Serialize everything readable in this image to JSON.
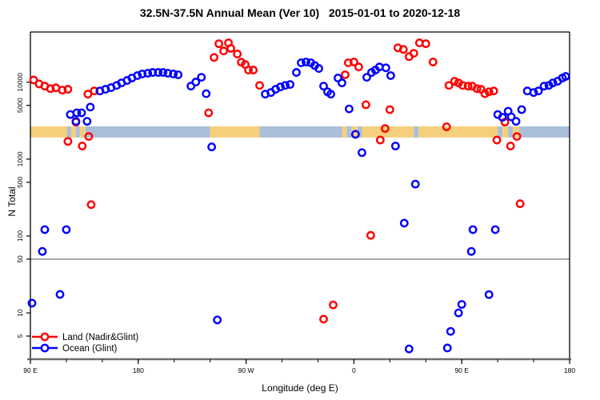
{
  "figure": {
    "title": "32.5N-37.5N Annual Mean (Ver 10)   2015-01-01 to 2020-12-18",
    "background": "#FFFFFF"
  },
  "chart_data": {
    "type": "scatter",
    "title": "32.5N-37.5N Annual Mean (Ver 10)   2015-01-01 to 2020-12-18",
    "xlabel": "Longitude (deg E)",
    "ylabel": "N Total",
    "x_axis": {
      "min": 90,
      "max": 540,
      "note": "longitude unwrapped eastward from 90E (axis wraps through 180, 90W, 0, 90E, 180)",
      "major_ticks": [
        {
          "pos": 90,
          "label": "90 E"
        },
        {
          "pos": 180,
          "label": "180"
        },
        {
          "pos": 270,
          "label": "90 W"
        },
        {
          "pos": 360,
          "label": "0"
        },
        {
          "pos": 450,
          "label": "90 E"
        },
        {
          "pos": 540,
          "label": "180"
        }
      ],
      "minor_tick_step": 30
    },
    "y_axis": {
      "scale": "log",
      "min": 2.5,
      "max": 45000,
      "tick_values": [
        5,
        10,
        50,
        100,
        500,
        1000,
        5000,
        10000
      ]
    },
    "reference_line": {
      "value": 50,
      "color": "#808080"
    },
    "surface_band": {
      "n_top": 2670,
      "n_bottom": 1910,
      "land_color": "#F6CF7D",
      "ocean_color": "#A9BED9",
      "segments": [
        {
          "from": 90,
          "to": 120.7,
          "type": "land"
        },
        {
          "from": 120.7,
          "to": 124,
          "type": "ocean"
        },
        {
          "from": 124,
          "to": 128,
          "type": "land"
        },
        {
          "from": 128,
          "to": 131.3,
          "type": "ocean"
        },
        {
          "from": 131.3,
          "to": 136,
          "type": "land"
        },
        {
          "from": 136,
          "to": 240,
          "type": "ocean"
        },
        {
          "from": 240,
          "to": 281.3,
          "type": "land"
        },
        {
          "from": 281.3,
          "to": 350,
          "type": "ocean"
        },
        {
          "from": 350,
          "to": 354,
          "type": "land"
        },
        {
          "from": 354,
          "to": 358,
          "type": "ocean"
        },
        {
          "from": 358,
          "to": 363.3,
          "type": "land"
        },
        {
          "from": 363.3,
          "to": 366.7,
          "type": "ocean"
        },
        {
          "from": 366.7,
          "to": 410,
          "type": "land"
        },
        {
          "from": 410,
          "to": 414,
          "type": "ocean"
        },
        {
          "from": 414,
          "to": 480,
          "type": "land"
        },
        {
          "from": 480,
          "to": 484,
          "type": "ocean"
        },
        {
          "from": 484,
          "to": 488.7,
          "type": "land"
        },
        {
          "from": 488.7,
          "to": 492.7,
          "type": "ocean"
        },
        {
          "from": 492.7,
          "to": 498,
          "type": "land"
        },
        {
          "from": 498,
          "to": 540,
          "type": "ocean"
        }
      ]
    },
    "series": [
      {
        "name": "Land (Nadir&Glint)",
        "color": "#FF0000",
        "marker": "open-circle",
        "points": [
          [
            92.7,
            10700
          ],
          [
            97.3,
            9500
          ],
          [
            102,
            8900
          ],
          [
            106.7,
            8250
          ],
          [
            111.3,
            8450
          ],
          [
            116.7,
            7900
          ],
          [
            121.3,
            8100
          ],
          [
            138,
            7000
          ],
          [
            143.3,
            7700
          ],
          [
            128,
            3030
          ],
          [
            121.3,
            1700
          ],
          [
            138.7,
            1970
          ],
          [
            133.3,
            1480
          ],
          [
            140.7,
            256
          ],
          [
            238.7,
            4000
          ],
          [
            243.3,
            21000
          ],
          [
            247.3,
            31700
          ],
          [
            251.3,
            25500
          ],
          [
            255.3,
            32500
          ],
          [
            257.3,
            27500
          ],
          [
            262.7,
            23300
          ],
          [
            266,
            18200
          ],
          [
            269.3,
            17000
          ],
          [
            272,
            14400
          ],
          [
            276,
            14400
          ],
          [
            281.3,
            9100
          ],
          [
            334.7,
            8.3
          ],
          [
            342.7,
            12.7
          ],
          [
            352.7,
            12500
          ],
          [
            355.3,
            17900
          ],
          [
            360,
            18300
          ],
          [
            364,
            15800
          ],
          [
            370,
            5100
          ],
          [
            374,
            102
          ],
          [
            382,
            1770
          ],
          [
            386,
            2500
          ],
          [
            390,
            4400
          ],
          [
            396.7,
            28000
          ],
          [
            401.3,
            26700
          ],
          [
            406,
            21500
          ],
          [
            410,
            23800
          ],
          [
            414.7,
            32500
          ],
          [
            420,
            31700
          ],
          [
            426,
            18300
          ],
          [
            437.3,
            2630
          ],
          [
            439.3,
            9100
          ],
          [
            444,
            10300
          ],
          [
            447.3,
            9800
          ],
          [
            450.7,
            9100
          ],
          [
            455.3,
            8900
          ],
          [
            458.7,
            8900
          ],
          [
            462.7,
            8250
          ],
          [
            466,
            8100
          ],
          [
            469.3,
            7100
          ],
          [
            472.7,
            7500
          ],
          [
            476.7,
            7700
          ],
          [
            479.3,
            1770
          ],
          [
            486,
            3030
          ],
          [
            490.7,
            1480
          ],
          [
            496,
            1970
          ],
          [
            498.7,
            263
          ]
        ]
      },
      {
        "name": "Ocean (Glint)",
        "color": "#0000FF",
        "marker": "open-circle",
        "points": [
          [
            91.3,
            13.4
          ],
          [
            100,
            63
          ],
          [
            102,
            121
          ],
          [
            114.7,
            17.4
          ],
          [
            120,
            121
          ],
          [
            123.3,
            3800
          ],
          [
            128.7,
            4000
          ],
          [
            132.7,
            4000
          ],
          [
            128,
            3100
          ],
          [
            137.3,
            3100
          ],
          [
            140,
            4750
          ],
          [
            148,
            7700
          ],
          [
            152.7,
            8100
          ],
          [
            157.3,
            8500
          ],
          [
            162,
            9100
          ],
          [
            166,
            9800
          ],
          [
            170.7,
            10550
          ],
          [
            174.7,
            11350
          ],
          [
            179.3,
            12200
          ],
          [
            183.3,
            12800
          ],
          [
            188,
            13100
          ],
          [
            192,
            13400
          ],
          [
            196.7,
            13400
          ],
          [
            200.7,
            13400
          ],
          [
            204.7,
            13100
          ],
          [
            209.3,
            12800
          ],
          [
            213.3,
            12500
          ],
          [
            224,
            8900
          ],
          [
            228,
            10050
          ],
          [
            232.7,
            11600
          ],
          [
            236.7,
            7100
          ],
          [
            241.3,
            1440
          ],
          [
            246,
            8.1
          ],
          [
            286,
            7000
          ],
          [
            290.7,
            7350
          ],
          [
            294.7,
            8100
          ],
          [
            298.7,
            8700
          ],
          [
            302.7,
            9100
          ],
          [
            306.7,
            9350
          ],
          [
            312,
            13400
          ],
          [
            316,
            17900
          ],
          [
            320,
            18300
          ],
          [
            324,
            17900
          ],
          [
            327.3,
            16500
          ],
          [
            330.7,
            15100
          ],
          [
            334.7,
            8900
          ],
          [
            338,
            7500
          ],
          [
            340.7,
            7000
          ],
          [
            346.7,
            11350
          ],
          [
            350,
            9800
          ],
          [
            356,
            4500
          ],
          [
            361.3,
            2100
          ],
          [
            366.7,
            1215
          ],
          [
            370.7,
            11600
          ],
          [
            374.7,
            13400
          ],
          [
            378,
            14400
          ],
          [
            381.3,
            15800
          ],
          [
            386.7,
            15400
          ],
          [
            390.7,
            12200
          ],
          [
            394.7,
            1480
          ],
          [
            402,
            147
          ],
          [
            411.3,
            473
          ],
          [
            406,
            3.4
          ],
          [
            438,
            3.5
          ],
          [
            440.7,
            5.75
          ],
          [
            447.3,
            10
          ],
          [
            450,
            12.9
          ],
          [
            458,
            63
          ],
          [
            459.3,
            121
          ],
          [
            472.7,
            17.3
          ],
          [
            478,
            121
          ],
          [
            480,
            3800
          ],
          [
            484,
            3500
          ],
          [
            488.7,
            4200
          ],
          [
            491.3,
            3550
          ],
          [
            495.3,
            3100
          ],
          [
            500,
            4400
          ],
          [
            504.7,
            7700
          ],
          [
            510,
            7350
          ],
          [
            514,
            7700
          ],
          [
            518.7,
            8900
          ],
          [
            522.7,
            9100
          ],
          [
            526,
            9800
          ],
          [
            530,
            10300
          ],
          [
            534,
            11350
          ],
          [
            536.7,
            11900
          ]
        ]
      }
    ],
    "legend": {
      "position": "bottom-left-inside",
      "items": [
        "Land (Nadir&Glint)",
        "Ocean (Glint)"
      ]
    }
  }
}
